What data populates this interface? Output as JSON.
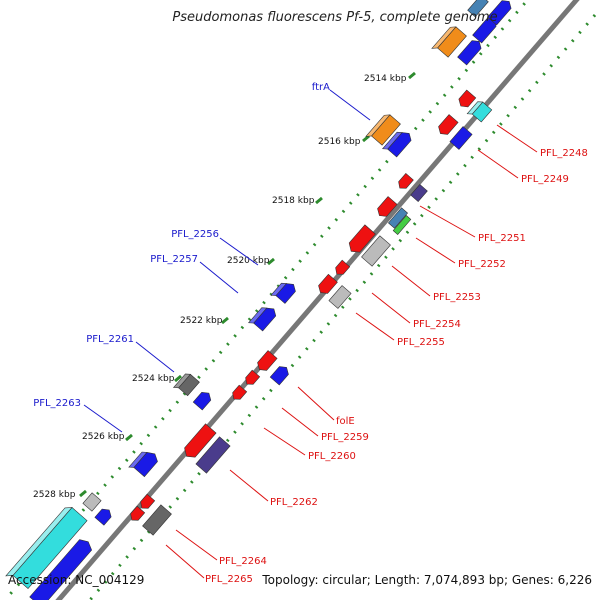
{
  "title": "Pseudomonas fluorescens Pf-5, complete genome",
  "footer": {
    "accession": "Accession: NC_004129",
    "summary": "Topology: circular; Length: 7,074,893 bp; Genes: 6,226"
  },
  "colors": {
    "background": "#ffffff",
    "backbone": "#777777",
    "ticks": "#2e8b2e",
    "label_forward": "#1a1acc",
    "label_reverse": "#dd1111",
    "blue": "#1a1ae6",
    "red": "#ee1111",
    "orange": "#f08c1a",
    "cyan": "#33dddd",
    "darkgray": "#666666",
    "lightgray": "#bbbbbb",
    "purple": "#4a3c8c",
    "green": "#44cc44",
    "steel": "#4682b4"
  },
  "kbp_ticks": [
    "2514 kbp",
    "2516 kbp",
    "2518 kbp",
    "2520 kbp",
    "2522 kbp",
    "2524 kbp",
    "2526 kbp",
    "2528 kbp"
  ],
  "forward_labels": [
    "ftrA",
    "PFL_2256",
    "PFL_2257",
    "PFL_2261",
    "PFL_2263"
  ],
  "reverse_labels": [
    "PFL_2248",
    "PFL_2249",
    "PFL_2251",
    "PFL_2252",
    "PFL_2253",
    "PFL_2254",
    "PFL_2255",
    "folE",
    "PFL_2259",
    "PFL_2260",
    "PFL_2262",
    "PFL_2264",
    "PFL_2265"
  ]
}
